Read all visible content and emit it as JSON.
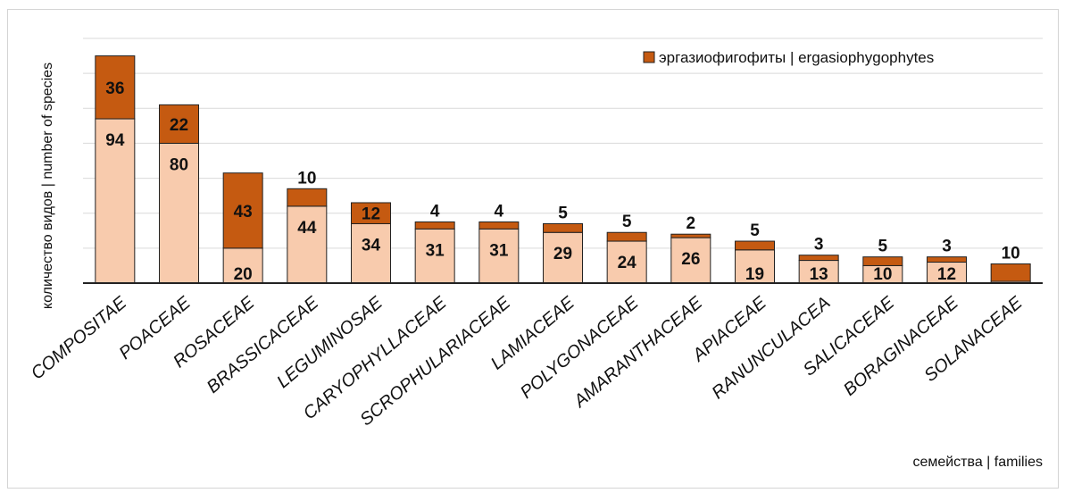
{
  "chart_data": {
    "type": "bar",
    "stacked": true,
    "categories": [
      "COMPOSITAE",
      "POACEAE",
      "ROSACEAE",
      "BRASSICACEAE",
      "LEGUMINOSAE",
      "CARYOPHYLLACEAE",
      "SCROPHULARIACEAE",
      "LAMIACEAE",
      "POLYGONACEAE",
      "AMARANTHACEAE",
      "APIACEAE",
      "RANUNCULACEA",
      "SALICACEAE",
      "BORAGINACEAE",
      "SOLANACEAE"
    ],
    "series": [
      {
        "values": [
          94,
          80,
          20,
          44,
          34,
          31,
          31,
          29,
          24,
          26,
          19,
          13,
          10,
          12,
          1
        ],
        "labels": [
          "94",
          "80",
          "20",
          "44",
          "34",
          "31",
          "31",
          "29",
          "24",
          "26",
          "19",
          "13",
          "10",
          "12",
          ""
        ],
        "color": "#f8cbad"
      },
      {
        "name": "эргазиофигофиты | ergasiophygophytes",
        "values": [
          36,
          22,
          43,
          10,
          12,
          4,
          4,
          5,
          5,
          2,
          5,
          3,
          5,
          3,
          10
        ],
        "labels": [
          "36",
          "22",
          "43",
          "10",
          "12",
          "4",
          "4",
          "5",
          "5",
          "2",
          "5",
          "3",
          "5",
          "3",
          "10"
        ],
        "color": "#c55a11"
      }
    ],
    "xlabel": "семейства | families",
    "ylabel": "количество видов | number of species",
    "ylim": [
      0,
      140
    ],
    "grid": true,
    "legend": "top-right"
  }
}
